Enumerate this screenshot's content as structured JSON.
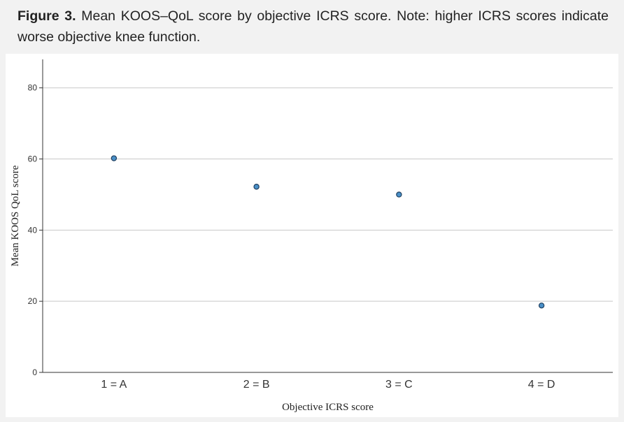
{
  "caption": {
    "label": "Figure 3.",
    "text": "Mean KOOS–QoL score by objective ICRS score. Note: higher ICRS scores indicate worse objective knee function."
  },
  "chart_data": {
    "type": "scatter",
    "categories": [
      "1 = A",
      "2 = B",
      "3 = C",
      "4 = D"
    ],
    "values": [
      60.2,
      52.2,
      50.0,
      18.8
    ],
    "xlabel": "Objective ICRS score",
    "ylabel": "Mean KOOS QoL score",
    "ylim": [
      0,
      88
    ],
    "yticks": [
      0,
      20,
      40,
      60,
      80
    ],
    "grid": true,
    "marker_color": "#4a90c8",
    "marker_edge": "#1f3f5f"
  }
}
